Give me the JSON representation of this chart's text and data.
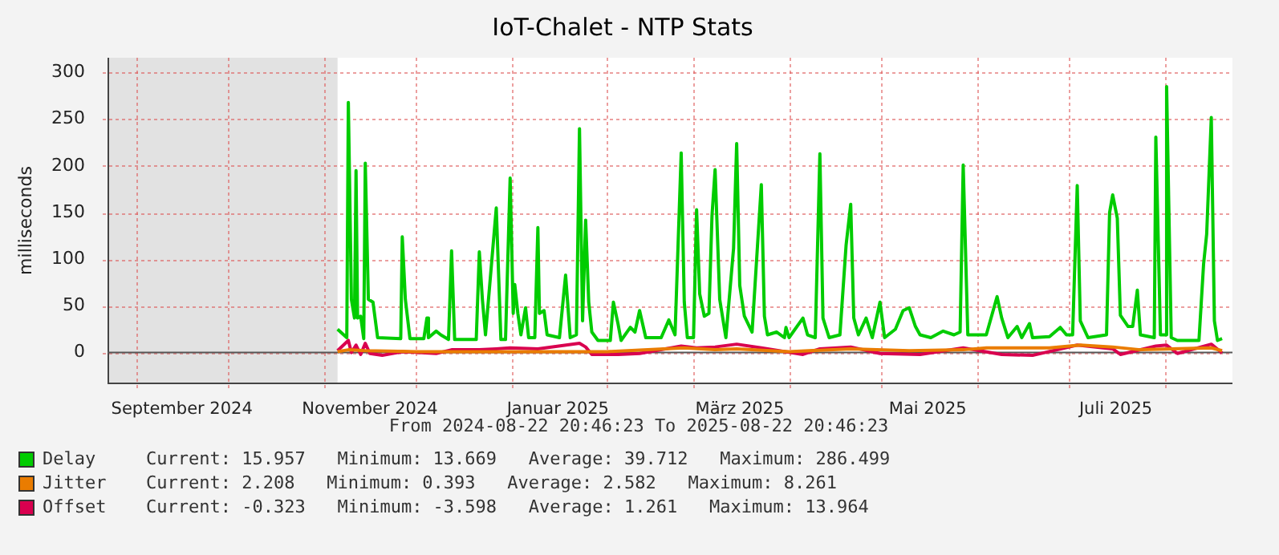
{
  "chart_data": {
    "type": "line",
    "title": "IoT-Chalet - NTP Stats",
    "ylabel": "milliseconds",
    "xlim": [
      "2024-08-22T20:46",
      "2025-08-22T20:46"
    ],
    "ylim": [
      -33,
      316
    ],
    "yticks": [
      0,
      50,
      100,
      150,
      200,
      250,
      300
    ],
    "xticks": [
      {
        "value": "2024-09-01",
        "label": null
      },
      {
        "value": "2024-09-16",
        "label": "September 2024"
      },
      {
        "value": "2024-10-01",
        "label": null
      },
      {
        "value": "2024-11-01",
        "label": null
      },
      {
        "value": "2024-11-16",
        "label": "November 2024"
      },
      {
        "value": "2024-12-01",
        "label": null
      },
      {
        "value": "2025-01-01",
        "label": null
      },
      {
        "value": "2025-01-16",
        "label": "Januar 2025"
      },
      {
        "value": "2025-02-01",
        "label": null
      },
      {
        "value": "2025-03-01",
        "label": null
      },
      {
        "value": "2025-03-16",
        "label": "März 2025"
      },
      {
        "value": "2025-04-01",
        "label": null
      },
      {
        "value": "2025-05-01",
        "label": null
      },
      {
        "value": "2025-05-16",
        "label": "Mai 2025"
      },
      {
        "value": "2025-06-01",
        "label": null
      },
      {
        "value": "2025-07-01",
        "label": null
      },
      {
        "value": "2025-07-16",
        "label": "Juli 2025"
      },
      {
        "value": "2025-08-01",
        "label": null
      }
    ],
    "grid": true,
    "legend": "bottom",
    "marker": "none",
    "bands": [
      {
        "axis": "x",
        "from": "2024-08-22T20:46",
        "to": "2024-11-05T12:00",
        "color": "#e2e2e2"
      }
    ],
    "annotations": [
      "From 2024-08-22 20:46:23 To 2025-08-22 20:46:23",
      "Current: 15.957   Minimum: 13.669   Average: 39.712   Maximum: 286.499",
      "Current: 2.208   Minimum: 0.393   Average: 2.582   Maximum: 8.261",
      "Current: -0.323   Minimum: -3.598   Average: 1.261   Maximum: 13.964"
    ],
    "series": [
      {
        "name": "Delay",
        "color": "#00cc00",
        "x": [
          "2024-11-05T12:00",
          "2024-11-08T12:00",
          "2024-11-09",
          "2024-11-10",
          "2024-11-11",
          "2024-11-11T12:00",
          "2024-11-12",
          "2024-11-13",
          "2024-11-14",
          "2024-11-14T12:00",
          "2024-11-15T12:00",
          "2024-11-17",
          "2024-11-18T12:00",
          "2024-11-26",
          "2024-11-26T12:00",
          "2024-11-27T12:00",
          "2024-11-29",
          "2024-12-03T12:00",
          "2024-12-04T12:00",
          "2024-12-05",
          "2024-12-07T12:00",
          "2024-12-09",
          "2024-12-11T12:00",
          "2024-12-12T12:00",
          "2024-12-13T12:00",
          "2024-12-20T12:00",
          "2024-12-21T12:00",
          "2024-12-22T12:00",
          "2024-12-23T12:00",
          "2024-12-27",
          "2024-12-28T12:00",
          "2024-12-30",
          "2024-12-31T12:00",
          "2025-01-01T12:00",
          "2025-01-02",
          "2025-01-03",
          "2025-01-04",
          "2025-01-05T12:00",
          "2025-01-06T12:00",
          "2025-01-08T12:00",
          "2025-01-09T12:00",
          "2025-01-10",
          "2025-01-11T12:00",
          "2025-01-12T12:00",
          "2025-01-16T12:00",
          "2025-01-18T12:00",
          "2025-01-20",
          "2025-01-22",
          "2025-01-23",
          "2025-01-24",
          "2025-01-25",
          "2025-01-26",
          "2025-01-27",
          "2025-01-29",
          "2025-02-02",
          "2025-02-03",
          "2025-02-04T12:00",
          "2025-02-05T12:00",
          "2025-02-08T12:00",
          "2025-02-10",
          "2025-02-11T12:00",
          "2025-02-13T12:00",
          "2025-02-18T12:00",
          "2025-02-21",
          "2025-02-23",
          "2025-02-25",
          "2025-02-26",
          "2025-02-27",
          "2025-03-01",
          "2025-03-02",
          "2025-03-03",
          "2025-03-04T12:00",
          "2025-03-06",
          "2025-03-07",
          "2025-03-08",
          "2025-03-09T12:00",
          "2025-03-11T12:00",
          "2025-03-14",
          "2025-03-15",
          "2025-03-16",
          "2025-03-17T12:00",
          "2025-03-20",
          "2025-03-23",
          "2025-03-24",
          "2025-03-25",
          "2025-03-28",
          "2025-03-30T12:00",
          "2025-03-31",
          "2025-04-01",
          "2025-04-05T12:00",
          "2025-04-07",
          "2025-04-09T12:00",
          "2025-04-11",
          "2025-04-12",
          "2025-04-14",
          "2025-04-17T12:00",
          "2025-04-19T12:00",
          "2025-04-21",
          "2025-04-22",
          "2025-04-23T12:00",
          "2025-04-26",
          "2025-04-28",
          "2025-04-30T12:00",
          "2025-05-02",
          "2025-05-05T12:00",
          "2025-05-08",
          "2025-05-10",
          "2025-05-12",
          "2025-05-13T12:00",
          "2025-05-17",
          "2025-05-21",
          "2025-05-24T12:00",
          "2025-05-26T12:00",
          "2025-05-27T12:00",
          "2025-05-29",
          "2025-06-04",
          "2025-06-07T12:00",
          "2025-06-09",
          "2025-06-11",
          "2025-06-14",
          "2025-06-15T12:00",
          "2025-06-18",
          "2025-06-19",
          "2025-06-24T12:00",
          "2025-06-28",
          "2025-06-30",
          "2025-07-02",
          "2025-07-03T12:00",
          "2025-07-04T12:00",
          "2025-07-07",
          "2025-07-13",
          "2025-07-14",
          "2025-07-15",
          "2025-07-16T12:00",
          "2025-07-17T12:00",
          "2025-07-20",
          "2025-07-21T12:00",
          "2025-07-23",
          "2025-07-24",
          "2025-07-28T12:00",
          "2025-07-29",
          "2025-07-30T12:00",
          "2025-08-01",
          "2025-08-01T12:00",
          "2025-08-03",
          "2025-08-05",
          "2025-08-12",
          "2025-08-13T12:00",
          "2025-08-14T12:00",
          "2025-08-16",
          "2025-08-17",
          "2025-08-18",
          "2025-08-19T12:00"
        ],
        "values": [
          25,
          16,
          268,
          57,
          37,
          195,
          37,
          39,
          15,
          203,
          57,
          54,
          16,
          15,
          124,
          57,
          15,
          15,
          37,
          16,
          23,
          19,
          14,
          109,
          14,
          14,
          108,
          57,
          19,
          155,
          14,
          14,
          187,
          42,
          73,
          42,
          19,
          48,
          16,
          16,
          134,
          42,
          45,
          19,
          16,
          83,
          16,
          19,
          240,
          34,
          142,
          54,
          22,
          13,
          13,
          54,
          31,
          13,
          27,
          22,
          45,
          16,
          16,
          35,
          19,
          214,
          54,
          16,
          16,
          153,
          63,
          39,
          42,
          147,
          196,
          57,
          16,
          112,
          224,
          72,
          39,
          22,
          180,
          39,
          19,
          22,
          16,
          27,
          16,
          37,
          19,
          16,
          213,
          37,
          16,
          19,
          115,
          159,
          37,
          19,
          37,
          16,
          54,
          16,
          25,
          45,
          48,
          28,
          19,
          16,
          23,
          19,
          22,
          201,
          19,
          19,
          60,
          37,
          16,
          28,
          16,
          31,
          16,
          17,
          27,
          19,
          19,
          179,
          34,
          16,
          19,
          150,
          169,
          144,
          40,
          28,
          28,
          67,
          19,
          16,
          231,
          19,
          19,
          285,
          16,
          13,
          13,
          95,
          127,
          252,
          34,
          13,
          15
        ]
      },
      {
        "name": "Jitter",
        "color": "#ea7c00",
        "x": [
          "2024-11-05T12:00",
          "2024-11-09",
          "2024-11-14T12:00",
          "2024-12-01",
          "2025-01-01",
          "2025-02-01",
          "2025-02-26",
          "2025-03-08",
          "2025-03-15",
          "2025-04-01",
          "2025-04-21",
          "2025-05-10",
          "2025-05-27T12:00",
          "2025-06-04",
          "2025-06-24T12:00",
          "2025-07-04T12:00",
          "2025-07-15",
          "2025-07-24",
          "2025-08-03",
          "2025-08-16",
          "2025-08-19T12:00"
        ],
        "values": [
          1,
          3,
          2,
          1,
          1,
          1,
          5,
          3,
          4,
          1,
          4,
          2,
          3,
          5,
          5,
          8,
          6,
          3,
          4,
          5,
          2
        ]
      },
      {
        "name": "Offset",
        "color": "#d9004f",
        "x": [
          "2024-11-05T12:00",
          "2024-11-09",
          "2024-11-10",
          "2024-11-11T12:00",
          "2024-11-13",
          "2024-11-14T12:00",
          "2024-11-16",
          "2024-11-20",
          "2024-11-26T12:00",
          "2024-12-07T12:00",
          "2024-12-12T12:00",
          "2024-12-21T12:00",
          "2024-12-27",
          "2024-12-31T12:00",
          "2025-01-09T12:00",
          "2025-01-23",
          "2025-01-25",
          "2025-01-27",
          "2025-02-04T12:00",
          "2025-02-11T12:00",
          "2025-02-25",
          "2025-03-02",
          "2025-03-08",
          "2025-03-15",
          "2025-03-23",
          "2025-04-05T12:00",
          "2025-04-11",
          "2025-04-21",
          "2025-04-30T12:00",
          "2025-05-13T12:00",
          "2025-05-27T12:00",
          "2025-06-09",
          "2025-06-19",
          "2025-07-03T12:00",
          "2025-07-15",
          "2025-07-17T12:00",
          "2025-07-29",
          "2025-08-01T12:00",
          "2025-08-05",
          "2025-08-16",
          "2025-08-19T12:00"
        ],
        "values": [
          2,
          13,
          0,
          8,
          -2,
          10,
          -1,
          -3,
          1,
          -1,
          3,
          3,
          4,
          5,
          4,
          10,
          6,
          -2,
          -2,
          -1,
          7,
          5,
          6,
          9,
          5,
          -2,
          4,
          6,
          -1,
          -2,
          5,
          -2,
          -3,
          8,
          4,
          -2,
          7,
          8,
          -1,
          9,
          -0.3
        ]
      }
    ]
  }
}
